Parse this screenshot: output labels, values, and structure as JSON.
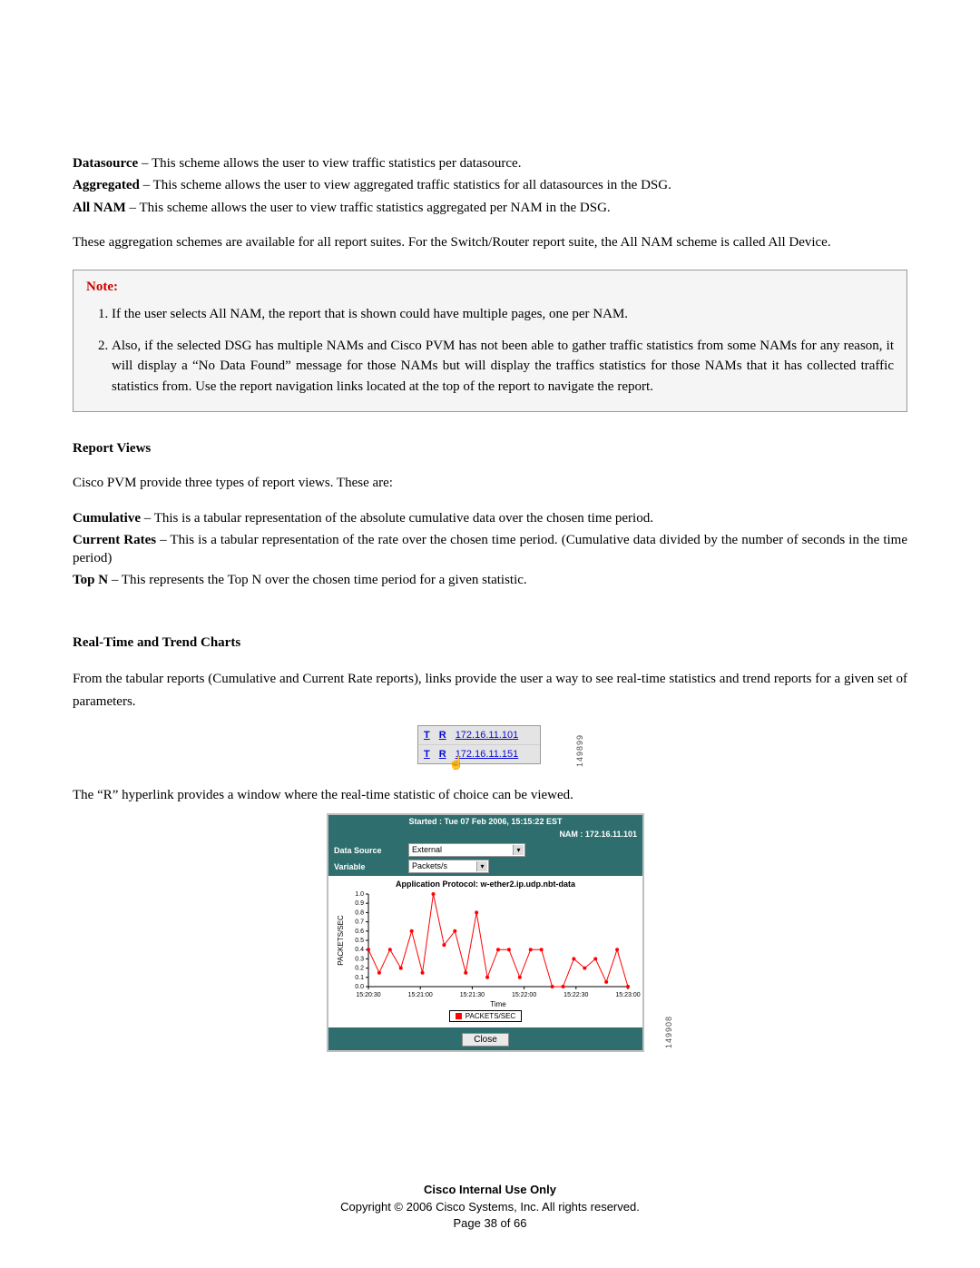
{
  "defs": {
    "datasource": {
      "label": "Datasource",
      "text": " – This scheme allows the user to view traffic statistics per datasource."
    },
    "aggregated": {
      "label": "Aggregated",
      "text": " – This scheme allows the user to view aggregated traffic statistics for all datasources in the DSG."
    },
    "allnam": {
      "label": "All NAM",
      "text": " – This scheme allows the user to view traffic statistics aggregated per NAM in the DSG."
    }
  },
  "agg_para": "These aggregation schemes are available for all report suites. For the Switch/Router report suite, the All NAM scheme is called All Device.",
  "note": {
    "title": "Note:",
    "items": [
      "If the user selects All NAM, the report that is shown could have multiple pages, one per NAM.",
      "Also, if the selected DSG has multiple NAMs and Cisco PVM has not been able to gather traffic statistics from some NAMs for any reason, it will display a “No Data Found” message for those NAMs but will display the traffics statistics for those NAMs that it has collected traffic statistics from. Use the report navigation links located at the top of the report to navigate the report."
    ]
  },
  "report_views": {
    "heading": "Report Views",
    "intro": "Cisco PVM provide three types of report views. These are:",
    "cumulative": {
      "label": "Cumulative",
      "text": " – This is a tabular representation of the absolute cumulative data over the chosen time period."
    },
    "current": {
      "label": "Current Rates",
      "text": " – This is a tabular representation of the rate over the chosen time period. (Cumulative data divided by the number of seconds in the time period)"
    },
    "topn": {
      "label": "Top N",
      "text": " – This represents the Top N over the chosen time period for a given statistic."
    }
  },
  "rtt": {
    "heading": "Real-Time and Trend Charts",
    "para": "From the tabular reports (Cumulative and Current Rate reports), links provide the user a way to see real-time statistics and trend reports for a given set of parameters.",
    "after_tr": "The “R” hyperlink provides a window where the real-time statistic of choice can be viewed."
  },
  "tr_table": {
    "rows": [
      {
        "t": "T",
        "r": "R",
        "ip": "172.16.11.101"
      },
      {
        "t": "T",
        "r": "R",
        "ip": "172.16.11.151"
      }
    ],
    "sidenum": "149899"
  },
  "rt_window": {
    "started": "Started : Tue 07 Feb 2006, 15:15:22 EST",
    "nam": "NAM : 172.16.11.101",
    "form": {
      "datasource": {
        "label": "Data Source",
        "value": "External"
      },
      "variable": {
        "label": "Variable",
        "value": "Packets/s"
      }
    },
    "plot_title": "Application Protocol: w-ether2.ip.udp.nbt-data",
    "legend": "PACKETS/SEC",
    "close": "Close",
    "sidenum": "149908"
  },
  "chart": {
    "type": "line",
    "xlabel": "Time",
    "ylabel": "PACKETS/SEC",
    "ylim": [
      0.0,
      1.0
    ],
    "ytick_step": 0.1,
    "xticks": [
      "15:20:30",
      "15:21:00",
      "15:21:30",
      "15:22:00",
      "15:22:30",
      "15:23:00"
    ],
    "line_color": "#ff0000",
    "marker_color": "#ff0000",
    "marker_size": 2,
    "line_width": 1,
    "background_color": "#ffffff",
    "axis_color": "#000000",
    "series": [
      {
        "x": 0,
        "y": 0.4
      },
      {
        "x": 1,
        "y": 0.15
      },
      {
        "x": 2,
        "y": 0.4
      },
      {
        "x": 3,
        "y": 0.2
      },
      {
        "x": 4,
        "y": 0.6
      },
      {
        "x": 5,
        "y": 0.15
      },
      {
        "x": 6,
        "y": 1.0
      },
      {
        "x": 7,
        "y": 0.45
      },
      {
        "x": 8,
        "y": 0.6
      },
      {
        "x": 9,
        "y": 0.15
      },
      {
        "x": 10,
        "y": 0.8
      },
      {
        "x": 11,
        "y": 0.1
      },
      {
        "x": 12,
        "y": 0.4
      },
      {
        "x": 13,
        "y": 0.4
      },
      {
        "x": 14,
        "y": 0.1
      },
      {
        "x": 15,
        "y": 0.4
      },
      {
        "x": 16,
        "y": 0.4
      },
      {
        "x": 17,
        "y": 0.0
      },
      {
        "x": 18,
        "y": 0.0
      },
      {
        "x": 19,
        "y": 0.3
      },
      {
        "x": 20,
        "y": 0.2
      },
      {
        "x": 21,
        "y": 0.3
      },
      {
        "x": 22,
        "y": 0.05
      },
      {
        "x": 23,
        "y": 0.4
      },
      {
        "x": 24,
        "y": 0.0
      }
    ]
  },
  "footer": {
    "l1": "Cisco Internal Use Only",
    "l2": "Copyright © 2006 Cisco Systems, Inc. All rights reserved.",
    "l3": "Page 38 of 66"
  }
}
